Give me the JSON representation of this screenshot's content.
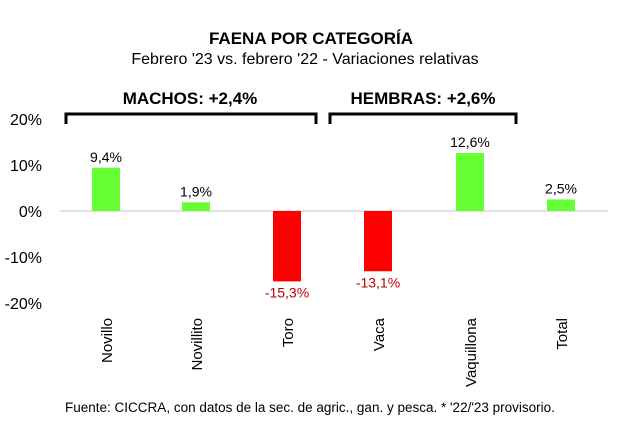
{
  "chart_data": {
    "type": "bar",
    "title": "FAENA POR CATEGORÍA",
    "subtitle": "Febrero '23 vs. febrero '22 - Variaciones relativas",
    "categories": [
      "Novillo",
      "Novillito",
      "Toro",
      "Vaca",
      "Vaquillona",
      "Total"
    ],
    "values": [
      9.4,
      1.9,
      -15.3,
      -13.1,
      12.6,
      2.5
    ],
    "value_labels": [
      "9,4%",
      "1,9%",
      "-15,3%",
      "-13,1%",
      "12,6%",
      "2,5%"
    ],
    "ylim": [
      -20,
      20
    ],
    "yticks": [
      20,
      10,
      0,
      -10,
      -20
    ],
    "ytick_labels": [
      "20%",
      "10%",
      "0%",
      "-10%",
      "-20%"
    ],
    "groups": [
      {
        "label": "MACHOS: +2,4%",
        "from": 0,
        "to": 2
      },
      {
        "label": "HEMBRAS: +2,6%",
        "from": 3,
        "to": 4
      }
    ],
    "colors": {
      "positive": "#66ff33",
      "negative": "#ff0000",
      "negative_label": "#c00000"
    },
    "xlabel": "",
    "ylabel": "",
    "grid": false
  },
  "footer": "Fuente: CICCRA, con datos de la sec. de agric., gan. y pesca. * '22/'23 provisorio."
}
